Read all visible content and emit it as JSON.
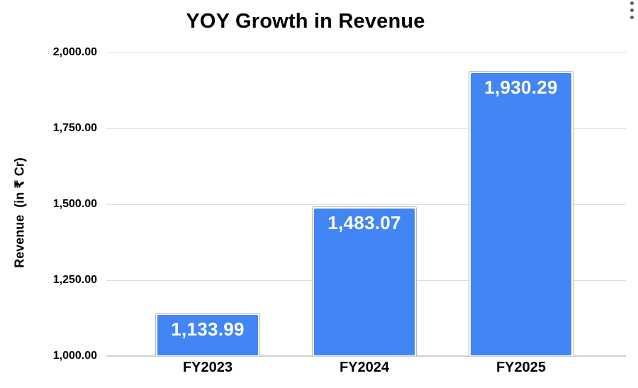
{
  "chart_data": {
    "type": "bar",
    "title": "YOY Growth in Revenue",
    "categories": [
      "FY2023",
      "FY2024",
      "FY2025"
    ],
    "values": [
      1133.99,
      1483.07,
      1930.29
    ],
    "value_labels": [
      "1,133.99",
      "1,483.07",
      "1,930.29"
    ],
    "xlabel": "",
    "ylabel": "Revenue  (in ₹ Cr)",
    "ylim": [
      1000,
      2000
    ],
    "ytick_interval": 250,
    "ytick_labels_top_to_bottom": [
      "2,000.00",
      "1,750.00",
      "1,500.00",
      "1,250.00",
      "1,000.00"
    ],
    "grid": true,
    "legend": false,
    "colors": {
      "bar_fill": "#4285f4",
      "bar_border": "#b5b5b5",
      "value_label_text": "#ffffff",
      "gridline": "#dddddd",
      "axis_line": "#cfcfcf",
      "text": "#000000",
      "menu_icon": "#616161",
      "background": "#ffffff"
    }
  },
  "icons": {
    "more_options": "three-dot-vertical-kebab-menu"
  }
}
